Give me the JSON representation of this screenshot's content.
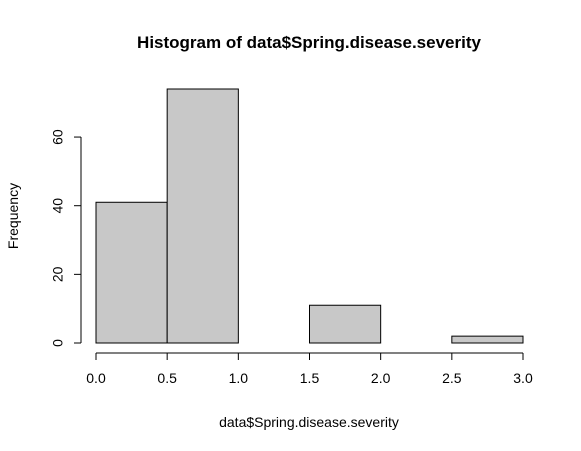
{
  "chart_data": {
    "type": "bar",
    "title": "Histogram of data$Spring.disease.severity",
    "xlabel": "data$Spring.disease.severity",
    "ylabel": "Frequency",
    "bins": [
      {
        "start": 0.0,
        "end": 0.5,
        "count": 41
      },
      {
        "start": 0.5,
        "end": 1.0,
        "count": 74
      },
      {
        "start": 1.0,
        "end": 1.5,
        "count": 0
      },
      {
        "start": 1.5,
        "end": 2.0,
        "count": 11
      },
      {
        "start": 2.0,
        "end": 2.5,
        "count": 0
      },
      {
        "start": 2.5,
        "end": 3.0,
        "count": 2
      }
    ],
    "xlim": [
      0,
      3
    ],
    "ylim": [
      0,
      74
    ],
    "x_ticks": [
      "0.0",
      "0.5",
      "1.0",
      "1.5",
      "2.0",
      "2.5",
      "3.0"
    ],
    "y_ticks": [
      "0",
      "20",
      "40",
      "60"
    ],
    "colors": {
      "bar_fill": "#c8c8c8",
      "bar_stroke": "#000000"
    },
    "grid": false
  }
}
